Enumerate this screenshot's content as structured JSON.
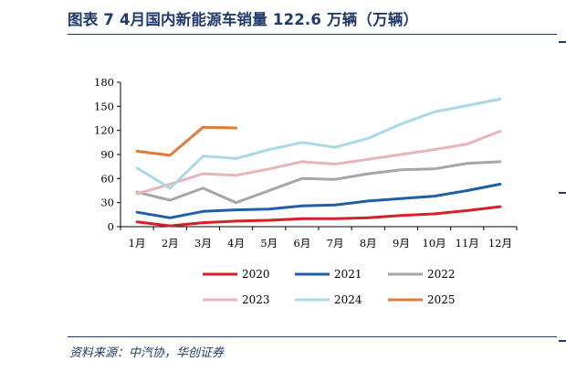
{
  "figure": {
    "title": "图表 7    4月国内新能源车销量 122.6 万辆（万辆）",
    "source": "资料来源：中汽协，华创证券"
  },
  "chart_data": {
    "type": "line",
    "title": "",
    "xlabel": "",
    "ylabel": "",
    "categories": [
      "1月",
      "2月",
      "3月",
      "4月",
      "5月",
      "6月",
      "7月",
      "8月",
      "9月",
      "10月",
      "11月",
      "12月"
    ],
    "ylim": [
      0,
      180
    ],
    "yticks": [
      0,
      30,
      60,
      90,
      120,
      150,
      180
    ],
    "grid": false,
    "legend_position": "bottom",
    "series": [
      {
        "name": "2020",
        "color": "#d42027",
        "values": [
          6,
          1,
          5,
          7,
          8,
          10,
          10,
          11,
          14,
          16,
          20,
          25
        ]
      },
      {
        "name": "2021",
        "color": "#1f5fa8",
        "values": [
          18,
          11,
          19,
          21,
          22,
          26,
          27,
          32,
          35,
          38,
          45,
          53
        ]
      },
      {
        "name": "2022",
        "color": "#a6a6a6",
        "values": [
          43,
          33,
          48,
          30,
          45,
          60,
          59,
          66,
          71,
          72,
          79,
          81
        ]
      },
      {
        "name": "2023",
        "color": "#e8b4b8",
        "values": [
          41,
          53,
          66,
          64,
          72,
          81,
          78,
          84,
          90,
          96,
          103,
          119
        ]
      },
      {
        "name": "2024",
        "color": "#a9d8e6",
        "values": [
          73,
          48,
          88,
          85,
          96,
          105,
          99,
          110,
          128,
          143,
          151,
          159
        ]
      },
      {
        "name": "2025",
        "color": "#e07b39",
        "values": [
          94,
          89,
          124,
          123,
          null,
          null,
          null,
          null,
          null,
          null,
          null,
          null
        ]
      }
    ]
  }
}
